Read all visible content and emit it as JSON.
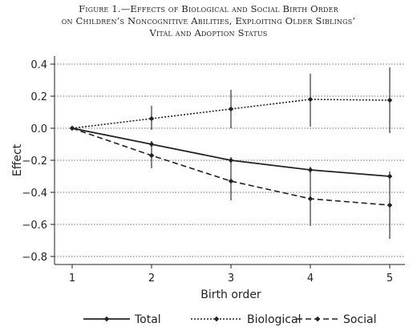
{
  "chart_data": {
    "type": "line",
    "title_lines": [
      "Figure 1.—Effects of Biological and Social Birth Order",
      "on Children’s Noncognitive Abilities, Exploiting Older Siblings’",
      "Vital and Adoption Status"
    ],
    "xlabel": "Birth order",
    "ylabel": "Effect",
    "x": [
      1,
      2,
      3,
      4,
      5
    ],
    "xlim": [
      1,
      5
    ],
    "ylim": [
      -0.85,
      0.45
    ],
    "yticks": [
      0.4,
      0.2,
      0.0,
      -0.2,
      -0.4,
      -0.6,
      -0.8
    ],
    "ytick_labels": [
      "0.4",
      "0.2",
      "0.0",
      "−0.2",
      "−0.4",
      "−0.6",
      "−0.8"
    ],
    "xtick_labels": [
      "1",
      "2",
      "3",
      "4",
      "5"
    ],
    "grid": "horizontal dotted",
    "legend_position": "bottom",
    "series": [
      {
        "name": "Total",
        "style": "solid",
        "values": [
          0.0,
          -0.1,
          -0.2,
          -0.26,
          -0.3
        ],
        "ci_low": [
          0.0,
          -0.12,
          -0.22,
          -0.28,
          -0.32
        ],
        "ci_high": [
          0.0,
          -0.08,
          -0.18,
          -0.24,
          -0.28
        ]
      },
      {
        "name": "Biological",
        "style": "dotted",
        "values": [
          0.0,
          0.06,
          0.12,
          0.18,
          0.175
        ],
        "ci_low": [
          0.0,
          -0.01,
          0.0,
          0.01,
          -0.03
        ],
        "ci_high": [
          0.0,
          0.14,
          0.24,
          0.34,
          0.38
        ]
      },
      {
        "name": "Social",
        "style": "dashed",
        "values": [
          0.0,
          -0.17,
          -0.33,
          -0.44,
          -0.48
        ],
        "ci_low": [
          0.0,
          -0.25,
          -0.45,
          -0.61,
          -0.69
        ],
        "ci_high": [
          0.0,
          -0.08,
          -0.2,
          -0.26,
          -0.27
        ]
      }
    ]
  }
}
